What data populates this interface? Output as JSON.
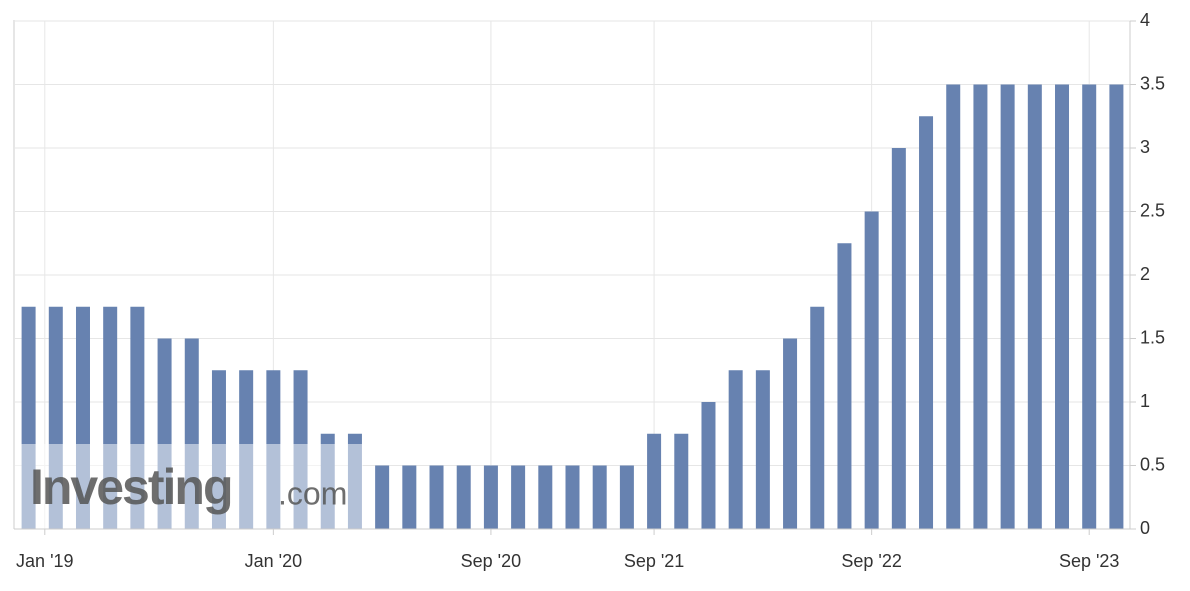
{
  "chart_data": {
    "type": "bar",
    "categories": [
      null,
      "Jan '19",
      null,
      null,
      null,
      null,
      null,
      null,
      null,
      "Jan '20",
      null,
      null,
      null,
      null,
      null,
      null,
      null,
      "Sep '20",
      null,
      null,
      null,
      null,
      null,
      "Sep '21",
      null,
      null,
      null,
      null,
      null,
      null,
      null,
      "Sep '22",
      null,
      null,
      null,
      null,
      null,
      null,
      null,
      "Sep '23",
      null
    ],
    "values": [
      1.75,
      1.75,
      1.75,
      1.75,
      1.75,
      1.5,
      1.5,
      1.25,
      1.25,
      1.25,
      1.25,
      0.75,
      0.75,
      0.5,
      0.5,
      0.5,
      0.5,
      0.5,
      0.5,
      0.5,
      0.5,
      0.5,
      0.5,
      0.75,
      0.75,
      1.0,
      1.25,
      1.25,
      1.5,
      1.75,
      2.25,
      2.5,
      3.0,
      3.25,
      3.5,
      3.5,
      3.5,
      3.5,
      3.5,
      3.5,
      3.5
    ],
    "color": "#6782b0",
    "ylim": [
      0,
      4
    ],
    "yticks": [
      0,
      0.5,
      1,
      1.5,
      2,
      2.5,
      3,
      3.5,
      4
    ],
    "grid": true,
    "watermark": "Investing",
    "watermark_suffix": ".com"
  }
}
